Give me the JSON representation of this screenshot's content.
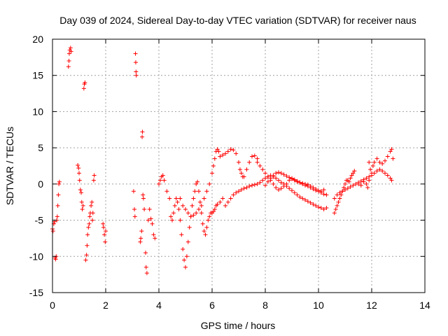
{
  "chart_data": {
    "type": "scatter",
    "title": "Day 039 of 2024, Sidereal Day-to-day VTEC variation (SDTVAR) for receiver naus",
    "xlabel": "GPS time / hours",
    "ylabel": "SDTVAR / TECUs",
    "xlim": [
      0,
      14
    ],
    "ylim": [
      -15,
      20
    ],
    "xticks": [
      0,
      2,
      4,
      6,
      8,
      10,
      12,
      14
    ],
    "yticks": [
      -15,
      -10,
      -5,
      0,
      5,
      10,
      15,
      20
    ],
    "grid": true,
    "marker": "+",
    "series": [
      {
        "name": "SDTVAR",
        "color": "#ff0000",
        "points": [
          [
            0.0,
            -6.2
          ],
          [
            0.02,
            -6.5
          ],
          [
            0.05,
            -5.5
          ],
          [
            0.08,
            -5.2
          ],
          [
            0.1,
            -10.2
          ],
          [
            0.12,
            -10.4
          ],
          [
            0.14,
            -10.0
          ],
          [
            0.16,
            -5.0
          ],
          [
            0.18,
            -4.5
          ],
          [
            0.2,
            -3.0
          ],
          [
            0.22,
            -1.5
          ],
          [
            0.24,
            0.0
          ],
          [
            0.26,
            0.3
          ],
          [
            0.6,
            16.2
          ],
          [
            0.62,
            17.0
          ],
          [
            0.63,
            18.0
          ],
          [
            0.65,
            18.5
          ],
          [
            0.68,
            18.8
          ],
          [
            0.7,
            18.3
          ],
          [
            0.95,
            2.6
          ],
          [
            0.98,
            2.2
          ],
          [
            1.0,
            1.5
          ],
          [
            1.02,
            0.5
          ],
          [
            1.05,
            -0.8
          ],
          [
            1.08,
            -1.2
          ],
          [
            1.1,
            -2.5
          ],
          [
            1.12,
            -3.5
          ],
          [
            1.15,
            -3.0
          ],
          [
            1.18,
            13.2
          ],
          [
            1.2,
            13.8
          ],
          [
            1.22,
            14.0
          ],
          [
            1.25,
            -10.5
          ],
          [
            1.28,
            -9.8
          ],
          [
            1.3,
            -8.5
          ],
          [
            1.32,
            -7.0
          ],
          [
            1.35,
            -6.0
          ],
          [
            1.38,
            -5.5
          ],
          [
            1.4,
            -4.5
          ],
          [
            1.42,
            -4.0
          ],
          [
            1.45,
            -3.0
          ],
          [
            1.48,
            -2.5
          ],
          [
            1.5,
            -5.0
          ],
          [
            1.52,
            -4.0
          ],
          [
            1.55,
            0.5
          ],
          [
            1.57,
            1.2
          ],
          [
            1.9,
            -5.5
          ],
          [
            1.92,
            -6.0
          ],
          [
            1.95,
            -7.0
          ],
          [
            1.98,
            -8.0
          ],
          [
            2.0,
            -6.5
          ],
          [
            3.05,
            -1.0
          ],
          [
            3.08,
            -3.5
          ],
          [
            3.1,
            -4.5
          ],
          [
            3.12,
            18.0
          ],
          [
            3.13,
            16.8
          ],
          [
            3.14,
            15.5
          ],
          [
            3.15,
            15.0
          ],
          [
            3.3,
            -8.0
          ],
          [
            3.32,
            -7.5
          ],
          [
            3.35,
            -6.5
          ],
          [
            3.37,
            6.5
          ],
          [
            3.38,
            7.2
          ],
          [
            3.4,
            -1.5
          ],
          [
            3.42,
            -2.0
          ],
          [
            3.45,
            -3.5
          ],
          [
            3.5,
            -9.5
          ],
          [
            3.52,
            -11.5
          ],
          [
            3.55,
            -12.3
          ],
          [
            3.6,
            -5.0
          ],
          [
            3.65,
            -3.5
          ],
          [
            3.7,
            -4.8
          ],
          [
            3.75,
            -5.5
          ],
          [
            3.8,
            -7.0
          ],
          [
            3.85,
            -7.5
          ],
          [
            4.0,
            0.0
          ],
          [
            4.05,
            0.5
          ],
          [
            4.1,
            1.0
          ],
          [
            4.15,
            1.2
          ],
          [
            4.2,
            0.5
          ],
          [
            4.3,
            -1.0
          ],
          [
            4.4,
            -2.0
          ],
          [
            4.45,
            -4.5
          ],
          [
            4.5,
            -5.0
          ],
          [
            4.55,
            -4.0
          ],
          [
            4.6,
            -3.0
          ],
          [
            4.65,
            -2.0
          ],
          [
            4.7,
            -2.5
          ],
          [
            4.75,
            -3.5
          ],
          [
            4.8,
            -5.0
          ],
          [
            4.85,
            -7.0
          ],
          [
            4.9,
            -9.0
          ],
          [
            4.95,
            -10.5
          ],
          [
            5.0,
            -11.5
          ],
          [
            5.05,
            -10.0
          ],
          [
            5.1,
            -8.0
          ],
          [
            5.15,
            -6.0
          ],
          [
            5.2,
            -4.5
          ],
          [
            5.25,
            -3.0
          ],
          [
            5.3,
            -2.0
          ],
          [
            5.35,
            -1.0
          ],
          [
            5.4,
            0.0
          ],
          [
            5.45,
            0.3
          ],
          [
            5.5,
            -1.0
          ],
          [
            5.55,
            -2.5
          ],
          [
            5.6,
            -4.0
          ],
          [
            5.65,
            -5.5
          ],
          [
            5.7,
            -6.5
          ],
          [
            5.75,
            -7.0
          ],
          [
            5.8,
            -6.0
          ],
          [
            5.85,
            -5.0
          ],
          [
            5.9,
            -4.5
          ],
          [
            5.95,
            -4.0
          ],
          [
            6.0,
            -4.0
          ],
          [
            6.05,
            -3.8
          ],
          [
            6.1,
            -3.5
          ],
          [
            6.15,
            -3.0
          ],
          [
            6.2,
            -2.8
          ],
          [
            6.3,
            -2.5
          ],
          [
            6.4,
            -2.0
          ],
          [
            4.8,
            -2.0
          ],
          [
            4.9,
            -3.0
          ],
          [
            5.0,
            -3.5
          ],
          [
            5.1,
            -4.0
          ],
          [
            5.2,
            -4.5
          ],
          [
            5.3,
            -4.3
          ],
          [
            5.4,
            -4.0
          ],
          [
            5.5,
            -3.5
          ],
          [
            5.6,
            -3.0
          ],
          [
            5.7,
            -2.0
          ],
          [
            5.8,
            -1.0
          ],
          [
            5.9,
            0.0
          ],
          [
            6.0,
            1.5
          ],
          [
            6.05,
            2.5
          ],
          [
            6.1,
            3.5
          ],
          [
            6.15,
            4.5
          ],
          [
            6.2,
            4.8
          ],
          [
            6.25,
            4.5
          ],
          [
            6.3,
            3.8
          ],
          [
            6.4,
            4.0
          ],
          [
            6.5,
            4.2
          ],
          [
            6.6,
            4.5
          ],
          [
            6.7,
            4.8
          ],
          [
            6.8,
            4.7
          ],
          [
            6.9,
            4.2
          ],
          [
            7.0,
            3.0
          ],
          [
            7.05,
            2.0
          ],
          [
            7.1,
            1.5
          ],
          [
            7.15,
            1.0
          ],
          [
            7.2,
            1.0
          ],
          [
            7.3,
            2.0
          ],
          [
            7.4,
            3.0
          ],
          [
            7.5,
            3.8
          ],
          [
            7.6,
            3.9
          ],
          [
            7.7,
            3.5
          ],
          [
            7.7,
            3.0
          ],
          [
            7.8,
            2.5
          ],
          [
            7.9,
            2.0
          ],
          [
            8.0,
            1.5
          ],
          [
            8.1,
            1.0
          ],
          [
            8.2,
            0.5
          ],
          [
            8.3,
            0.0
          ],
          [
            8.4,
            -0.5
          ],
          [
            8.5,
            -0.8
          ],
          [
            8.6,
            -0.6
          ],
          [
            8.7,
            -0.3
          ],
          [
            8.8,
            0.0
          ],
          [
            8.9,
            0.5
          ],
          [
            9.0,
            0.8
          ],
          [
            9.1,
            0.6
          ],
          [
            9.2,
            0.4
          ],
          [
            9.3,
            0.2
          ],
          [
            9.4,
            0.0
          ],
          [
            9.5,
            -0.2
          ],
          [
            9.6,
            -0.3
          ],
          [
            9.7,
            -0.5
          ],
          [
            9.8,
            -0.7
          ],
          [
            9.9,
            -0.9
          ],
          [
            10.0,
            -1.0
          ],
          [
            10.1,
            -1.2
          ],
          [
            10.2,
            -1.4
          ],
          [
            10.3,
            -1.5
          ],
          [
            6.5,
            -3.0
          ],
          [
            6.6,
            -2.5
          ],
          [
            6.7,
            -2.0
          ],
          [
            6.8,
            -1.5
          ],
          [
            6.9,
            -1.2
          ],
          [
            7.0,
            -1.0
          ],
          [
            7.1,
            -0.8
          ],
          [
            7.2,
            -0.6
          ],
          [
            7.3,
            -0.5
          ],
          [
            7.4,
            -0.3
          ],
          [
            7.5,
            -0.2
          ],
          [
            7.6,
            -0.1
          ],
          [
            7.7,
            0.0
          ],
          [
            7.8,
            0.2
          ],
          [
            7.9,
            0.5
          ],
          [
            8.0,
            0.8
          ],
          [
            8.1,
            1.0
          ],
          [
            8.2,
            1.2
          ],
          [
            8.3,
            1.0
          ],
          [
            8.4,
            0.8
          ],
          [
            8.5,
            0.5
          ],
          [
            8.6,
            0.2
          ],
          [
            8.7,
            0.0
          ],
          [
            8.8,
            -0.3
          ],
          [
            8.9,
            -0.6
          ],
          [
            9.0,
            -0.9
          ],
          [
            9.1,
            -1.2
          ],
          [
            9.2,
            -1.5
          ],
          [
            9.3,
            -1.8
          ],
          [
            9.4,
            -2.0
          ],
          [
            9.5,
            -2.2
          ],
          [
            9.6,
            -2.4
          ],
          [
            9.7,
            -2.6
          ],
          [
            9.8,
            -2.8
          ],
          [
            9.9,
            -3.0
          ],
          [
            10.0,
            -3.2
          ],
          [
            10.1,
            -3.3
          ],
          [
            10.2,
            -3.5
          ],
          [
            10.3,
            -3.3
          ],
          [
            8.0,
            -0.2
          ],
          [
            8.1,
            0.3
          ],
          [
            8.2,
            0.8
          ],
          [
            8.3,
            1.2
          ],
          [
            8.4,
            1.5
          ],
          [
            8.5,
            1.6
          ],
          [
            8.6,
            1.5
          ],
          [
            8.7,
            1.3
          ],
          [
            8.8,
            1.1
          ],
          [
            8.9,
            0.9
          ],
          [
            9.0,
            0.7
          ],
          [
            9.1,
            0.5
          ],
          [
            9.2,
            0.3
          ],
          [
            9.3,
            0.2
          ],
          [
            9.4,
            0.1
          ],
          [
            9.5,
            0.0
          ],
          [
            9.6,
            -0.1
          ],
          [
            9.7,
            -0.3
          ],
          [
            9.8,
            -0.5
          ],
          [
            9.9,
            -0.7
          ],
          [
            10.0,
            -0.9
          ],
          [
            10.1,
            -1.0
          ],
          [
            10.2,
            -0.8
          ],
          [
            10.6,
            -4.0
          ],
          [
            10.65,
            -3.5
          ],
          [
            10.7,
            -3.0
          ],
          [
            10.75,
            -2.5
          ],
          [
            10.8,
            -2.0
          ],
          [
            10.85,
            -1.5
          ],
          [
            10.9,
            -1.0
          ],
          [
            10.95,
            -0.5
          ],
          [
            11.0,
            0.0
          ],
          [
            11.05,
            0.5
          ],
          [
            11.1,
            0.5
          ],
          [
            11.15,
            0.3
          ],
          [
            11.2,
            0.8
          ],
          [
            11.25,
            1.2
          ],
          [
            11.3,
            1.5
          ],
          [
            11.35,
            1.8
          ],
          [
            10.6,
            -2.0
          ],
          [
            10.7,
            -1.5
          ],
          [
            10.8,
            -1.2
          ],
          [
            10.9,
            -1.0
          ],
          [
            11.0,
            -0.8
          ],
          [
            11.1,
            -0.6
          ],
          [
            11.2,
            -0.4
          ],
          [
            11.3,
            -0.2
          ],
          [
            11.4,
            0.0
          ],
          [
            11.5,
            0.2
          ],
          [
            11.6,
            0.4
          ],
          [
            11.7,
            0.6
          ],
          [
            11.8,
            0.8
          ],
          [
            11.9,
            1.0
          ],
          [
            12.0,
            1.2
          ],
          [
            12.1,
            1.5
          ],
          [
            12.2,
            1.8
          ],
          [
            12.3,
            2.0
          ],
          [
            12.4,
            1.8
          ],
          [
            12.5,
            1.5
          ],
          [
            12.6,
            1.2
          ],
          [
            12.7,
            0.8
          ],
          [
            12.75,
            0.5
          ],
          [
            11.9,
            3.0
          ],
          [
            11.95,
            2.0
          ],
          [
            12.0,
            1.5
          ],
          [
            12.05,
            2.5
          ],
          [
            12.1,
            3.0
          ],
          [
            12.2,
            3.5
          ],
          [
            12.3,
            3.0
          ],
          [
            12.4,
            2.8
          ],
          [
            12.5,
            3.2
          ],
          [
            12.6,
            3.8
          ],
          [
            12.7,
            4.5
          ],
          [
            12.75,
            4.8
          ],
          [
            12.8,
            3.5
          ],
          [
            11.5,
            0.0
          ],
          [
            11.6,
            -0.2
          ],
          [
            11.7,
            0.3
          ],
          [
            11.8,
            0.0
          ],
          [
            11.85,
            -0.5
          ],
          [
            11.9,
            0.5
          ]
        ]
      }
    ]
  }
}
